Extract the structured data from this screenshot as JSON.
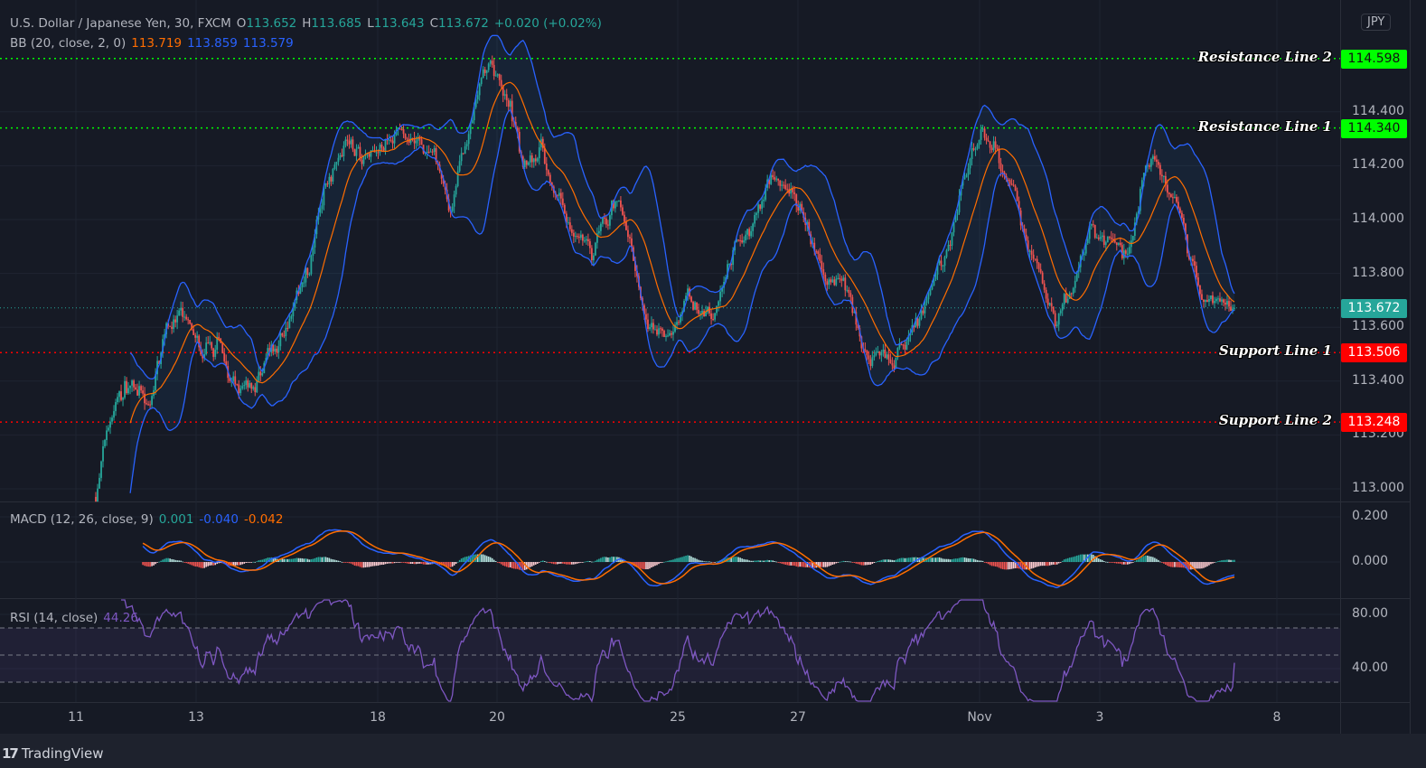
{
  "header": {
    "symbol": "U.S. Dollar / Japanese Yen, 30, FXCM",
    "open_label": "O",
    "open": "113.652",
    "high_label": "H",
    "high": "113.685",
    "low_label": "L",
    "low": "113.643",
    "close_label": "C",
    "close": "113.672",
    "change": "+0.020 (+0.02%)"
  },
  "bb": {
    "label": "BB (20, close, 2, 0)",
    "basis": "113.719",
    "upper": "113.859",
    "lower": "113.579"
  },
  "macd": {
    "label": "MACD (12, 26, close, 9)",
    "hist": "0.001",
    "macd": "-0.040",
    "signal": "-0.042"
  },
  "rsi": {
    "label": "RSI (14, close)",
    "value": "44.26"
  },
  "currency": "JPY",
  "brand": "TradingView",
  "brand_logo": "17",
  "colors": {
    "background": "#161a25",
    "up": "#26a69a",
    "down": "#ef5350",
    "bb_band": "#2962ff",
    "bb_basis": "#ff6d00",
    "rsi": "#7e57c2",
    "resistance": "#00ff00",
    "support": "#ff0000",
    "last_price": "#26a69a"
  },
  "chart_data": {
    "type": "candlestick",
    "instrument": "USD/JPY 30m",
    "x_tick_labels": [
      "11",
      "13",
      "18",
      "20",
      "25",
      "27",
      "Nov",
      "3",
      "8"
    ],
    "price_ticks": [
      "114.400",
      "114.200",
      "114.000",
      "113.800",
      "113.600",
      "113.400",
      "113.200",
      "113.000"
    ],
    "price_range": [
      112.95,
      114.72
    ],
    "approx_close_path": [
      112.97,
      113.31,
      113.41,
      113.24,
      113.67,
      113.61,
      113.47,
      113.54,
      113.31,
      113.41,
      113.47,
      113.67,
      113.84,
      114.14,
      114.35,
      114.24,
      114.28,
      114.31,
      114.28,
      114.21,
      114.04,
      114.31,
      114.55,
      114.48,
      114.21,
      114.31,
      114.08,
      113.94,
      113.84,
      114.01,
      113.88,
      113.64,
      113.51,
      113.67,
      113.67,
      113.71,
      113.88,
      114.04,
      114.21,
      114.14,
      113.94,
      113.71,
      113.81,
      113.61,
      113.54,
      113.44,
      113.61,
      113.74,
      113.94,
      114.21,
      114.35,
      114.21,
      114.04,
      113.81,
      113.61,
      113.81,
      113.94,
      113.88,
      113.84,
      114.14,
      114.21,
      114.01,
      113.71,
      113.71,
      113.672
    ],
    "last_price": "113.672",
    "levels": [
      {
        "name": "Resistance Line 2",
        "value": "114.598",
        "type": "resistance"
      },
      {
        "name": "Resistance Line 1",
        "value": "114.340",
        "type": "resistance"
      },
      {
        "name": "Support Line 1",
        "value": "113.506",
        "type": "support"
      },
      {
        "name": "Support Line 2",
        "value": "113.248",
        "type": "support"
      }
    ],
    "macd_ticks": [
      "0.200",
      "0.000"
    ],
    "rsi_ticks": [
      "80.00",
      "40.00"
    ],
    "rsi_bands": [
      70,
      50,
      30
    ],
    "grid": true
  }
}
